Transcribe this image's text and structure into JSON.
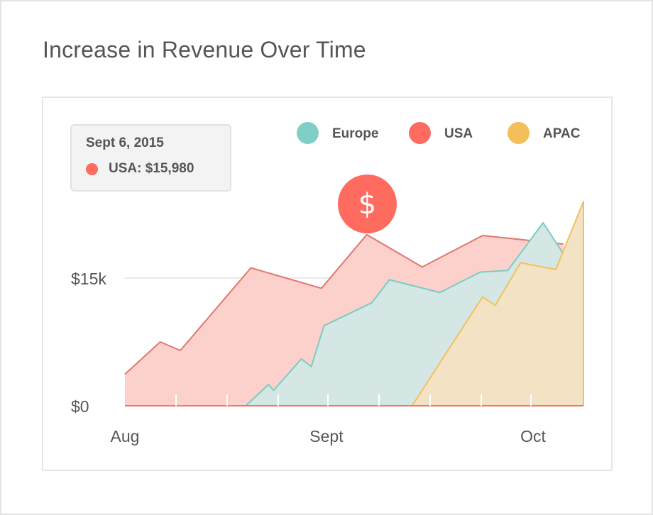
{
  "title": "Increase in Revenue Over Time",
  "colors": {
    "europe": "#7fcfc7",
    "usa": "#ff6b5e",
    "apac": "#f3bf5a",
    "europe_fill": "#d5e7e5",
    "usa_fill": "#fcd0cb",
    "apac_fill": "#f4e2c4",
    "europe_line": "#78cdc4",
    "usa_line": "#e2776d",
    "apac_line": "#f2c060",
    "grid": "#e3e3e3",
    "axis": "#f17368",
    "text": "#555555"
  },
  "tooltip": {
    "date": "Sept 6, 2015",
    "value": "USA: $15,980"
  },
  "legend": [
    {
      "label": "Europe",
      "color": "#7fcfc7"
    },
    {
      "label": "USA",
      "color": "#ff6b5e"
    },
    {
      "label": "APAC",
      "color": "#f3bf5a"
    }
  ],
  "badge": {
    "symbol": "$",
    "icon": "dollar-icon"
  },
  "chart_data": {
    "type": "area",
    "title": "Increase in Revenue Over Time",
    "x_tick_labels": [
      "Aug",
      "Sept",
      "Oct"
    ],
    "x_tick_days": [
      0,
      40,
      81
    ],
    "y_tick_labels": [
      "$0",
      "$15k"
    ],
    "y_tick_values": [
      0,
      15000
    ],
    "xlim": [
      0,
      91
    ],
    "ylim": [
      0,
      24000
    ],
    "grid": true,
    "legend_position": "top-right",
    "series": [
      {
        "name": "USA",
        "x": [
          0,
          7,
          11,
          25,
          39,
          48,
          59,
          71,
          87
        ],
        "y": [
          3700,
          7500,
          6500,
          16200,
          13800,
          20100,
          16300,
          20000,
          19000
        ]
      },
      {
        "name": "Europe",
        "x": [
          24,
          28.5,
          29.5,
          35,
          37,
          39.5,
          49,
          52.5,
          62.5,
          70.5,
          76,
          83,
          87.5
        ],
        "y": [
          0,
          2500,
          1800,
          5500,
          4600,
          9400,
          12100,
          14800,
          13300,
          15700,
          15900,
          21500,
          17400
        ]
      },
      {
        "name": "APAC",
        "x": [
          57,
          71,
          73.5,
          78.5,
          85.5,
          91,
          91
        ],
        "y": [
          0,
          12800,
          11800,
          16800,
          16000,
          24000,
          0
        ]
      }
    ]
  }
}
